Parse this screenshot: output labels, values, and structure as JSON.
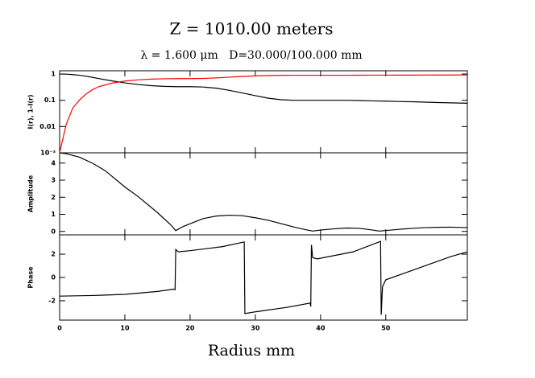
{
  "chart_data": [
    {
      "type": "line",
      "title": "Z = 1010.00 meters",
      "subtitle": "λ = 1.600 μm   D=30.000/100.000 mm",
      "y_label": "I(r), 1-I(r)",
      "yscale": "log",
      "x": [
        0,
        1,
        2,
        3,
        4,
        5,
        6,
        8,
        10,
        12,
        14,
        16,
        18,
        20,
        22,
        24,
        26,
        28,
        30,
        32,
        34,
        36,
        38,
        40,
        42,
        44,
        46,
        48,
        50,
        52,
        54,
        56,
        58,
        60,
        62.5
      ],
      "series": [
        {
          "color": "#000000",
          "values": [
            0.999,
            0.99,
            0.95,
            0.9,
            0.83,
            0.75,
            0.67,
            0.55,
            0.46,
            0.4,
            0.36,
            0.34,
            0.33,
            0.33,
            0.32,
            0.29,
            0.24,
            0.19,
            0.15,
            0.12,
            0.105,
            0.1,
            0.1,
            0.1,
            0.1,
            0.1,
            0.098,
            0.095,
            0.093,
            0.09,
            0.088,
            0.085,
            0.082,
            0.08,
            0.077
          ]
        },
        {
          "color": "#ff0000",
          "values": [
            0.001,
            0.012,
            0.05,
            0.1,
            0.17,
            0.25,
            0.33,
            0.45,
            0.54,
            0.6,
            0.64,
            0.66,
            0.67,
            0.67,
            0.68,
            0.71,
            0.76,
            0.81,
            0.85,
            0.88,
            0.895,
            0.9,
            0.9,
            0.9,
            0.9,
            0.9,
            0.902,
            0.905,
            0.907,
            0.91,
            0.912,
            0.915,
            0.918,
            0.92,
            0.923
          ]
        }
      ],
      "xlim": [
        0,
        62.5
      ],
      "ylim": [
        0.001,
        1.33
      ],
      "yticks": [
        1,
        0.1,
        0.01,
        {
          "value": 0.001,
          "label": "10⁻³"
        }
      ]
    },
    {
      "type": "line",
      "y_label": "Amplitude",
      "x": [
        0,
        1,
        3,
        5,
        7,
        10,
        12,
        15,
        17,
        17.8,
        19,
        20,
        22,
        24,
        26,
        28,
        30,
        32,
        34,
        36,
        38,
        38.8,
        40,
        42,
        44,
        46,
        48,
        49,
        50,
        52,
        54,
        56,
        58,
        60,
        62.5
      ],
      "series": [
        {
          "color": "#000000",
          "values": [
            4.6,
            4.55,
            4.35,
            4.0,
            3.55,
            2.6,
            2.05,
            1.1,
            0.4,
            0.05,
            0.3,
            0.45,
            0.75,
            0.9,
            0.95,
            0.92,
            0.8,
            0.65,
            0.45,
            0.25,
            0.08,
            0.02,
            0.08,
            0.15,
            0.2,
            0.18,
            0.08,
            0.02,
            0.05,
            0.12,
            0.18,
            0.22,
            0.24,
            0.25,
            0.22
          ]
        }
      ],
      "xlim": [
        0,
        62.5
      ],
      "ylim": [
        -0.2,
        4.6
      ],
      "yticks": [
        0,
        1,
        2,
        3,
        4
      ]
    },
    {
      "type": "line",
      "y_label": "Phase",
      "x_label": "Radius mm",
      "x": [
        0,
        5,
        10,
        15,
        17.5,
        17.7,
        17.8,
        18.2,
        20,
        25,
        28.3,
        28.4,
        30,
        35,
        38.4,
        38.5,
        38.6,
        38.8,
        39.5,
        45,
        49.2,
        49.3,
        49.5,
        50,
        55,
        60,
        62.5
      ],
      "series": [
        {
          "color": "#000000",
          "values": [
            -1.6,
            -1.55,
            -1.45,
            -1.2,
            -1.0,
            -1.05,
            2.4,
            2.2,
            2.3,
            2.65,
            3.05,
            -3.1,
            -2.95,
            -2.55,
            -2.2,
            -2.5,
            2.8,
            1.7,
            1.6,
            2.2,
            3.1,
            -3.2,
            -0.8,
            -0.2,
            0.8,
            1.8,
            2.2
          ]
        }
      ],
      "xlim": [
        0,
        62.5
      ],
      "ylim": [
        -3.66,
        3.66
      ],
      "yticks": [
        -2,
        0,
        2
      ],
      "xticks": [
        0,
        10,
        20,
        30,
        40,
        50
      ]
    }
  ]
}
